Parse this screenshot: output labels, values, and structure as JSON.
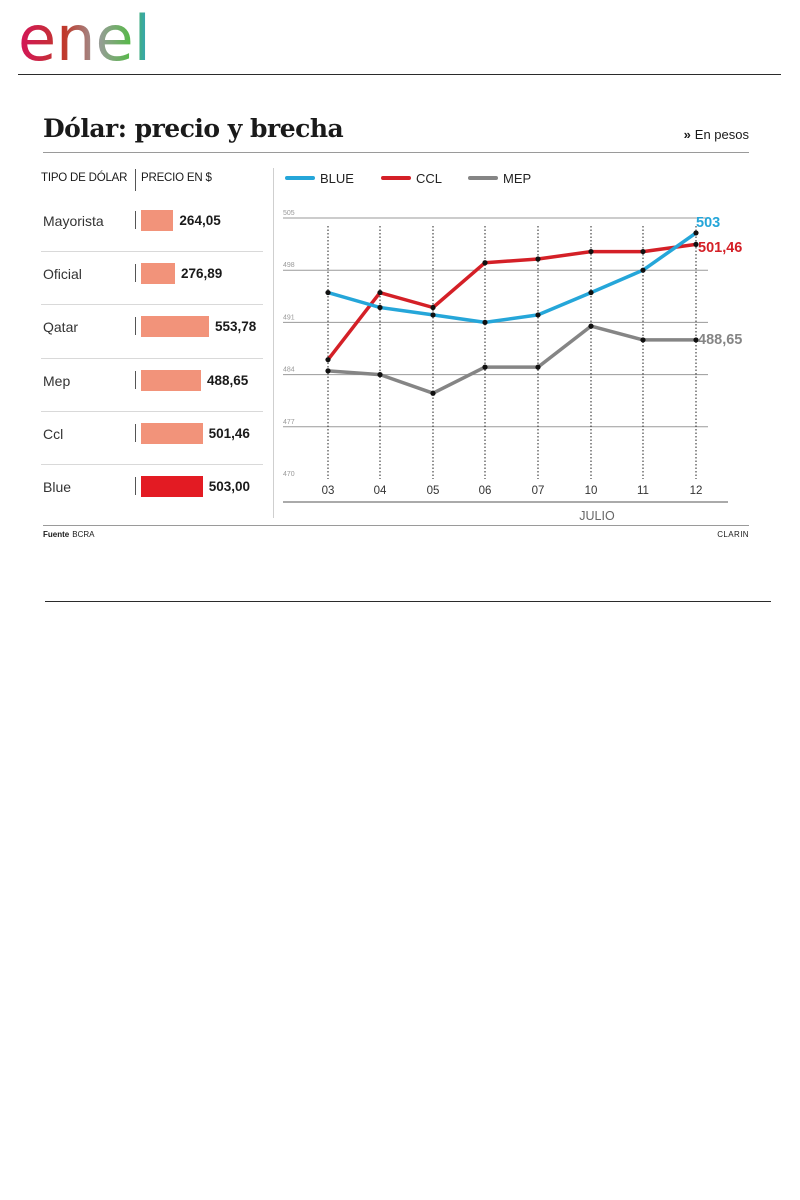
{
  "brand": {
    "logo_text": "enel"
  },
  "header": {
    "title": "Dólar: precio y brecha",
    "units_label": "En pesos",
    "units_marker": "»"
  },
  "table": {
    "col_type": "TIPO DE DÓLAR",
    "col_price": "PRECIO EN $",
    "rows": [
      {
        "label": "Mayorista",
        "value": 264.05,
        "display": "264,05"
      },
      {
        "label": "Oficial",
        "value": 276.89,
        "display": "276,89"
      },
      {
        "label": "Qatar",
        "value": 553.78,
        "display": "553,78"
      },
      {
        "label": "Mep",
        "value": 488.65,
        "display": "488,65"
      },
      {
        "label": "Ccl",
        "value": 501.46,
        "display": "501,46"
      },
      {
        "label": "Blue",
        "value": 503.0,
        "display": "503,00"
      }
    ]
  },
  "footer": {
    "source_label": "Fuente",
    "source_value": "BCRA",
    "credit": "CLARIN"
  },
  "colors": {
    "blue": "#25a6d9",
    "ccl": "#d42027",
    "mep": "#858585",
    "bar": "#f2937a",
    "bar_highlight": "#e31b23"
  },
  "chart_data": [
    {
      "type": "bar",
      "title": "",
      "categories": [
        "Mayorista",
        "Oficial",
        "Qatar",
        "Mep",
        "Ccl",
        "Blue"
      ],
      "values": [
        264.05,
        276.89,
        553.78,
        488.65,
        501.46,
        503.0
      ],
      "xlabel": "PRECIO EN $",
      "ylabel": "TIPO DE DÓLAR"
    },
    {
      "type": "line",
      "title": "Dólar: precio y brecha",
      "categories": [
        "03",
        "04",
        "05",
        "06",
        "07",
        "10",
        "11",
        "12"
      ],
      "xlabel": "JULIO",
      "ylabel": "",
      "ylim": [
        470,
        505
      ],
      "yticks": [
        470,
        477,
        484,
        491,
        498,
        505
      ],
      "grid": true,
      "legend": "top",
      "series": [
        {
          "name": "BLUE",
          "values": [
            495,
            493,
            492,
            491,
            492,
            495,
            498,
            503
          ],
          "end_label": "503"
        },
        {
          "name": "CCL",
          "values": [
            486,
            495,
            493,
            499,
            499.5,
            500.5,
            500.5,
            501.46
          ],
          "end_label": "501,46"
        },
        {
          "name": "MEP",
          "values": [
            484.5,
            484,
            481.5,
            485,
            485,
            490.5,
            488.65,
            488.65
          ],
          "end_label": "488,65"
        }
      ]
    }
  ]
}
